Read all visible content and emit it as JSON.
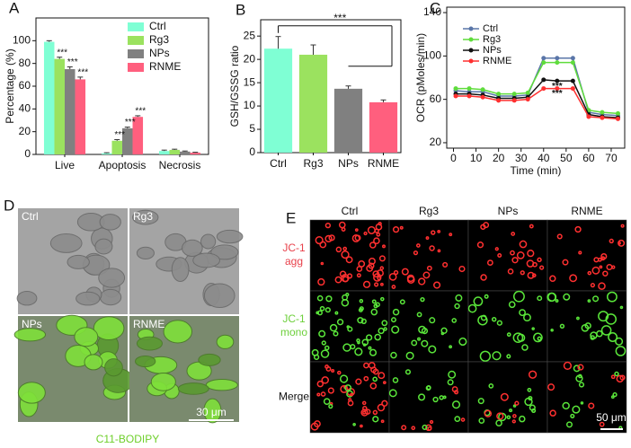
{
  "chart_data": [
    {
      "type": "bar",
      "panel": "A",
      "ylabel": "Percentage (%)",
      "categories": [
        "Live",
        "Apoptosis",
        "Necrosis"
      ],
      "series": [
        {
          "name": "Ctrl",
          "color": "#7fffd4",
          "values": [
            99,
            1,
            3
          ],
          "errors": [
            1,
            0.5,
            0.8
          ]
        },
        {
          "name": "Rg3",
          "color": "#9be25f",
          "values": [
            84,
            12,
            4
          ],
          "errors": [
            1.5,
            1,
            0.6
          ]
        },
        {
          "name": "NPs",
          "color": "#808080",
          "values": [
            75,
            23,
            2.5
          ],
          "errors": [
            2,
            1,
            0.5
          ]
        },
        {
          "name": "RNME",
          "color": "#ff5f7e",
          "values": [
            66,
            33,
            1.5
          ],
          "errors": [
            2,
            1,
            0.4
          ]
        }
      ],
      "ylim": [
        0,
        120
      ],
      "yticks": [
        0,
        20,
        40,
        60,
        80,
        100
      ],
      "legend": "upper right",
      "annotations": [
        "***",
        "***",
        "***",
        "***",
        "***",
        "***"
      ]
    },
    {
      "type": "bar",
      "panel": "B",
      "ylabel": "GSH/GSSG ratio",
      "categories": [
        "Ctrl",
        "Rg3",
        "NPs",
        "RNME"
      ],
      "values": [
        22.3,
        21.0,
        13.7,
        10.8
      ],
      "errors": [
        2.6,
        2.1,
        0.6,
        0.5
      ],
      "colors": [
        "#7fffd4",
        "#9be25f",
        "#808080",
        "#ff5f7e"
      ],
      "ylim": [
        0,
        28.5
      ],
      "yticks": [
        0,
        5,
        10,
        15,
        20,
        25
      ],
      "annotations": [
        "***"
      ]
    },
    {
      "type": "line",
      "panel": "C",
      "ylabel": "OCR (pMoles/min)",
      "xlabel": "Time (min)",
      "x": [
        1,
        7,
        13,
        20,
        27,
        33,
        40,
        46,
        53,
        60,
        66,
        73
      ],
      "series": [
        {
          "name": "Ctrl",
          "color": "#5a76a8",
          "values": [
            68,
            67,
            67,
            63,
            63,
            64,
            98,
            98,
            98,
            48,
            46,
            45
          ]
        },
        {
          "name": "Rg3",
          "color": "#5fdc3c",
          "values": [
            70,
            70,
            69,
            65,
            65,
            66,
            94,
            94,
            94,
            50,
            48,
            47
          ]
        },
        {
          "name": "NPs",
          "color": "#111111",
          "values": [
            65,
            65,
            64,
            61,
            61,
            62,
            78,
            77,
            77,
            46,
            44,
            43
          ]
        },
        {
          "name": "RNME",
          "color": "#ff3030",
          "values": [
            63,
            63,
            62,
            59,
            59,
            60,
            70,
            70,
            70,
            44,
            43,
            42
          ]
        }
      ],
      "xlim": [
        -3,
        76
      ],
      "xticks": [
        0,
        10,
        20,
        30,
        40,
        50,
        60,
        70
      ],
      "ylim": [
        15,
        145
      ],
      "yticks": [
        20,
        60,
        100,
        140
      ],
      "legend": "upper left",
      "annotations": [
        "***",
        "***"
      ]
    }
  ],
  "panel_d": {
    "label": "D",
    "images": [
      "Ctrl",
      "Rg3",
      "NPs",
      "RNME"
    ],
    "scale_bar": "30 μm",
    "caption": "C11-BODIPY"
  },
  "panel_e": {
    "label": "E",
    "columns": [
      "Ctrl",
      "Rg3",
      "NPs",
      "RNME"
    ],
    "rows": [
      [
        "JC-1",
        "agg"
      ],
      [
        "JC-1",
        "mono"
      ],
      [
        "Merge"
      ]
    ],
    "scale_bar": "50 μm"
  }
}
